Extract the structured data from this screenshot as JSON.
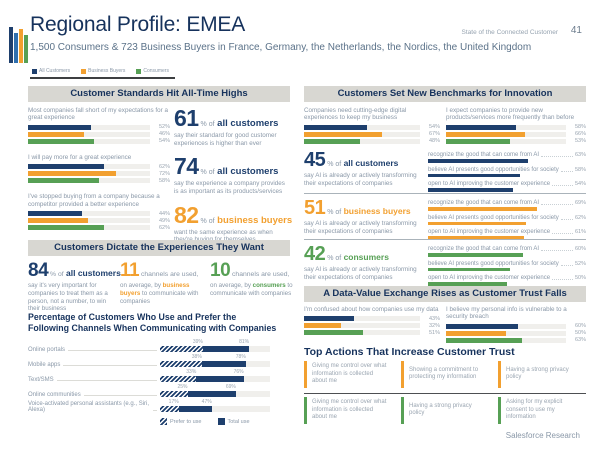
{
  "page": {
    "title": "Regional Profile: EMEA",
    "subtitle": "1,500 Consumers & 723 Business Buyers in France, Germany, the Netherlands, the Nordics, the United Kingdom",
    "brand": "State of the Connected Customer",
    "page_number": "41",
    "footer": "Salesforce Research"
  },
  "colors": {
    "navy": "#1e3f6d",
    "blue": "#2f6fae",
    "orange": "#f2a030",
    "green": "#57a055",
    "band_bg": "#d8d7d2",
    "text_gray": "#8a98a8",
    "track": "#f0efec"
  },
  "legend": [
    {
      "label": "All Customers",
      "color_key": "navy"
    },
    {
      "label": "Business Buyers",
      "color_key": "orange"
    },
    {
      "label": "Consumers",
      "color_key": "green"
    }
  ],
  "sections": {
    "standards": {
      "title": "Customer Standards Hit All-Time Highs",
      "charts": [
        {
          "label": "Most companies fall short of my expectations for a great experience",
          "values": [
            52,
            46,
            54
          ]
        },
        {
          "label": "I will pay more for a great experience",
          "values": [
            62,
            72,
            58
          ]
        },
        {
          "label": "I've stopped buying from a company because a competitor provided a better experience",
          "values": [
            44,
            49,
            62
          ]
        }
      ],
      "stats": [
        {
          "value": "61",
          "of": "% of",
          "audience": "all customers",
          "color_key": "navy",
          "desc": "say their standard for good customer experiences is higher than ever"
        },
        {
          "value": "74",
          "of": "% of",
          "audience": "all customers",
          "color_key": "navy",
          "desc": "say the experience a company provides is as important as its products/services"
        },
        {
          "value": "82",
          "of": "% of",
          "audience": "business buyers",
          "color_key": "orange",
          "desc": "want the same experience as when they're buying for themselves"
        }
      ]
    },
    "dictate": {
      "title": "Customers Dictate the Experiences They Want",
      "mini_stats": [
        {
          "value": "84",
          "color_key": "navy",
          "after": "% of",
          "emph": "all customers",
          "emph_color_key": "navy",
          "pre_emph": "",
          "tail": "",
          "desc": "say it's very important for companies to treat them as a person, not a number, to win their business"
        },
        {
          "value": "11",
          "color_key": "orange",
          "after": "channels are used,",
          "emph": "business buyers",
          "emph_color_key": "orange",
          "pre_emph": "on average, by ",
          "tail": " to communicate with companies",
          "desc": ""
        },
        {
          "value": "10",
          "color_key": "green",
          "after": "channels are used,",
          "emph": "consumers",
          "emph_color_key": "green",
          "pre_emph": "on average, by ",
          "tail": " to communicate with companies",
          "desc": ""
        }
      ],
      "channels_chart": {
        "title": "Percentage of Customers Who Use and Prefer the Following Channels When Communicating with Companies",
        "rows": [
          {
            "label": "Online portals",
            "prefer": 39,
            "total": 81
          },
          {
            "label": "Mobile apps",
            "prefer": 38,
            "total": 78
          },
          {
            "label": "Text/SMS",
            "prefer": 33,
            "total": 76
          },
          {
            "label": "Online communities",
            "prefer": 25,
            "total": 69
          },
          {
            "label": "Voice-activated personal assistants (e.g., Siri, Alexa)",
            "prefer": 17,
            "total": 47
          }
        ],
        "legend": [
          {
            "label": "Prefer to use",
            "style": "hatch"
          },
          {
            "label": "Total use",
            "style": "solid"
          }
        ]
      }
    },
    "innovation": {
      "title": "Customers Set New Benchmarks for Innovation",
      "charts": [
        {
          "label": "Companies need cutting-edge digital experiences to keep my business",
          "values": [
            54,
            67,
            48
          ]
        },
        {
          "label": "I expect companies to provide new products/services more frequently than before",
          "values": [
            58,
            66,
            53
          ]
        }
      ],
      "ai_blocks": [
        {
          "value": "45",
          "of": "% of",
          "audience": "all customers",
          "color_key": "navy",
          "desc": "say AI is already or actively transforming their expectations of companies",
          "bars": [
            {
              "label": "recognize the good that can come from AI",
              "value": 63
            },
            {
              "label": "believe AI presents good opportunities for society",
              "value": 58
            },
            {
              "label": "open to AI improving the customer experience",
              "value": 54
            }
          ]
        },
        {
          "value": "51",
          "of": "% of",
          "audience": "business buyers",
          "color_key": "orange",
          "desc": "say AI is already or actively transforming their expectations of companies",
          "bars": [
            {
              "label": "recognize the good that can come from AI",
              "value": 69
            },
            {
              "label": "believe AI presents good opportunities for society",
              "value": 62
            },
            {
              "label": "open to AI improving the customer experience",
              "value": 61
            }
          ]
        },
        {
          "value": "42",
          "of": "% of",
          "audience": "consumers",
          "color_key": "green",
          "desc": "say AI is already or actively transforming their expectations of companies",
          "bars": [
            {
              "label": "recognize the good that can come from AI",
              "value": 60
            },
            {
              "label": "believe AI presents good opportunities for society",
              "value": 52
            },
            {
              "label": "open to AI improving the customer experience",
              "value": 50
            }
          ]
        }
      ]
    },
    "trust": {
      "title": "A Data-Value Exchange Rises as Customer Trust Falls",
      "charts": [
        {
          "label": "I'm confused about how companies use my data",
          "values": [
            43,
            32,
            51
          ]
        },
        {
          "label": "I believe my personal info is vulnerable to a security breach",
          "values": [
            60,
            50,
            63
          ]
        }
      ],
      "actions": {
        "title": "Top Actions That Increase Customer Trust",
        "business_buyers": [
          "Giving me control over what information is collected about me",
          "Showing a commitment to protecting my information",
          "Having a strong privacy policy"
        ],
        "consumers": [
          "Giving me control over what information is collected about me",
          "Having a strong privacy policy",
          "Asking for my explicit consent to use my information"
        ]
      }
    }
  }
}
